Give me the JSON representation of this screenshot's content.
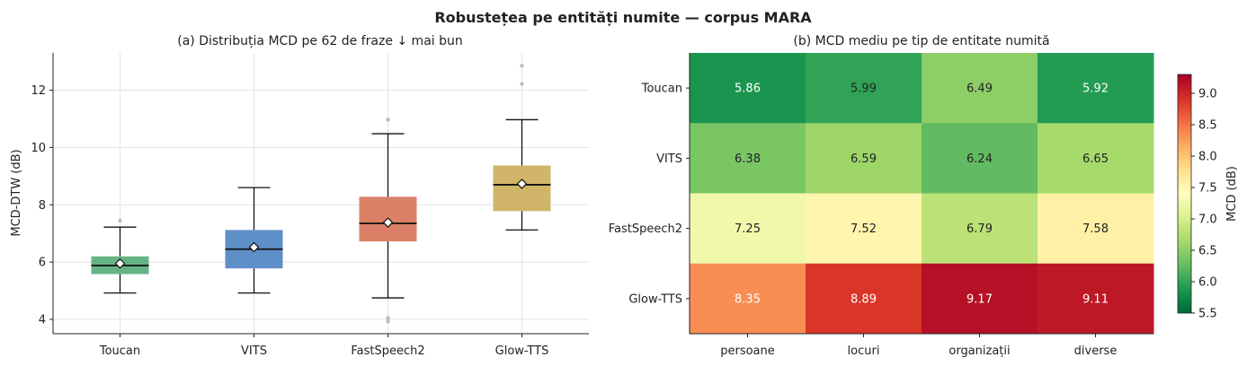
{
  "title": "Robustețea pe entități numite — corpus MARA",
  "chart_data": [
    {
      "type": "box",
      "title": "(a) Distribuția MCD pe 62 de fraze  ↓ mai bun",
      "ylabel": "MCD-DTW (dB)",
      "xlabel": "",
      "ylim": [
        3.5,
        13.3
      ],
      "yticks": [
        "4",
        "6",
        "8",
        "10",
        "12"
      ],
      "grid": true,
      "categories": [
        "Toucan",
        "VITS",
        "FastSpeech2",
        "Glow-TTS"
      ],
      "boxes": [
        {
          "name": "Toucan",
          "whisker_low": 4.92,
          "q1": 5.58,
          "median": 5.88,
          "q3": 6.2,
          "whisker_high": 7.22,
          "mean": 5.95,
          "outliers": [
            7.45
          ],
          "color": "#66b386"
        },
        {
          "name": "VITS",
          "whisker_low": 4.92,
          "q1": 5.78,
          "median": 6.45,
          "q3": 7.12,
          "whisker_high": 8.6,
          "mean": 6.52,
          "outliers": [],
          "color": "#5f8fc7"
        },
        {
          "name": "FastSpeech2",
          "whisker_low": 4.75,
          "q1": 6.72,
          "median": 7.35,
          "q3": 8.28,
          "whisker_high": 10.48,
          "mean": 7.38,
          "outliers": [
            3.93,
            4.05,
            10.97
          ],
          "color": "#db8066"
        },
        {
          "name": "Glow-TTS",
          "whisker_low": 7.12,
          "q1": 7.78,
          "median": 8.7,
          "q3": 9.37,
          "whisker_high": 10.97,
          "mean": 8.73,
          "outliers": [
            12.22,
            12.85
          ],
          "color": "#d1b568"
        }
      ]
    },
    {
      "type": "heatmap",
      "title": "(b) MCD mediu pe tip de entitate numită",
      "rows": [
        "Toucan",
        "VITS",
        "FastSpeech2",
        "Glow-TTS"
      ],
      "columns": [
        "persoane",
        "locuri",
        "organizații",
        "diverse"
      ],
      "values": [
        [
          5.86,
          5.99,
          6.49,
          5.92
        ],
        [
          6.38,
          6.59,
          6.24,
          6.65
        ],
        [
          7.25,
          7.52,
          6.79,
          7.58
        ],
        [
          8.35,
          8.89,
          9.17,
          9.11
        ]
      ],
      "value_labels": [
        [
          "5.86",
          "5.99",
          "6.49",
          "5.92"
        ],
        [
          "6.38",
          "6.59",
          "6.24",
          "6.65"
        ],
        [
          "7.25",
          "7.52",
          "6.79",
          "7.58"
        ],
        [
          "8.35",
          "8.89",
          "9.17",
          "9.11"
        ]
      ],
      "colormap": "RdYlGn_r",
      "vmin": 5.5,
      "vmax": 9.3,
      "colorbar": {
        "label": "MCD (dB)",
        "ticks": [
          5.5,
          6.0,
          6.5,
          7.0,
          7.5,
          8.0,
          8.5,
          9.0
        ],
        "tick_labels": [
          "5.5",
          "6.0",
          "6.5",
          "7.0",
          "7.5",
          "8.0",
          "8.5",
          "9.0"
        ]
      }
    }
  ]
}
